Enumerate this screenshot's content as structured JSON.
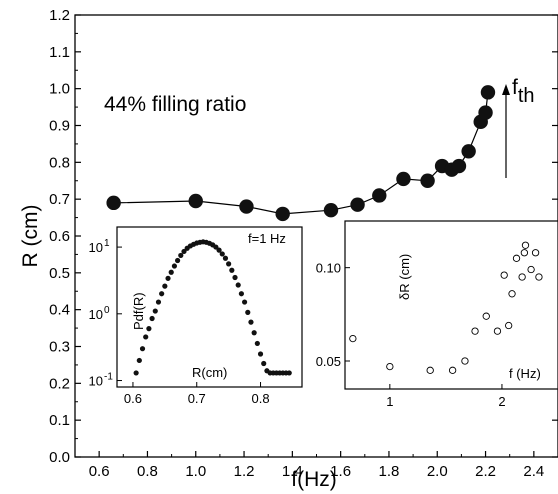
{
  "main": {
    "type": "line",
    "xlabel": "f(Hz)",
    "ylabel": "R (cm)",
    "xlim": [
      0.5,
      2.5
    ],
    "ylim": [
      0.0,
      1.2
    ],
    "xticks": [
      "0.6",
      "0.8",
      "1.0",
      "1.2",
      "1.4",
      "1.6",
      "1.8",
      "2.0",
      "2.2",
      "2.4"
    ],
    "yticks": [
      "0.0",
      "0.1",
      "0.2",
      "0.3",
      "0.4",
      "0.5",
      "0.6",
      "0.7",
      "0.8",
      "0.9",
      "1.0",
      "1.1",
      "1.2"
    ],
    "annotation": "44% filling ratio",
    "threshold_label": "f",
    "threshold_sub": "th"
  },
  "inset_left": {
    "ylabel": "Pdf(R)",
    "xlabel": "R(cm)",
    "note": "f=1 Hz",
    "xticks": [
      "0.6",
      "0.7",
      "0.8"
    ],
    "ytick_bases": [
      "10",
      "10",
      "10"
    ],
    "ytick_exps": [
      "1",
      "0",
      "-1"
    ]
  },
  "inset_right": {
    "ylabel": "δR (cm)",
    "xlabel": "f (Hz)",
    "xticks": [
      "1",
      "2"
    ],
    "yticks": [
      "0.10",
      "0.05"
    ]
  },
  "chart_data": [
    {
      "type": "line",
      "title": "",
      "xlabel": "f(Hz)",
      "ylabel": "R (cm)",
      "xlim": [
        0.5,
        2.5
      ],
      "ylim": [
        0.0,
        1.2
      ],
      "grid": false,
      "x": [
        0.66,
        1.0,
        1.21,
        1.36,
        1.56,
        1.67,
        1.76,
        1.86,
        1.96,
        2.02,
        2.06,
        2.09,
        2.13,
        2.18,
        2.2,
        2.21
      ],
      "y": [
        0.69,
        0.695,
        0.68,
        0.66,
        0.67,
        0.685,
        0.71,
        0.755,
        0.75,
        0.79,
        0.78,
        0.79,
        0.83,
        0.91,
        0.935,
        0.99
      ],
      "annotations": [
        "44% filling ratio",
        "fth"
      ]
    },
    {
      "type": "scatter",
      "title": "",
      "xlabel": "R(cm)",
      "ylabel": "Pdf(R)",
      "yscale": "log",
      "xlim": [
        0.575,
        0.865
      ],
      "ylim": [
        0.08,
        20
      ],
      "annotations": [
        "f=1 Hz"
      ],
      "x": [
        0.605,
        0.61,
        0.615,
        0.62,
        0.625,
        0.63,
        0.635,
        0.64,
        0.645,
        0.65,
        0.655,
        0.66,
        0.665,
        0.67,
        0.675,
        0.68,
        0.685,
        0.69,
        0.695,
        0.7,
        0.705,
        0.71,
        0.715,
        0.72,
        0.725,
        0.73,
        0.735,
        0.74,
        0.745,
        0.75,
        0.755,
        0.76,
        0.765,
        0.77,
        0.775,
        0.78,
        0.785,
        0.79,
        0.795,
        0.8,
        0.805,
        0.81,
        0.815,
        0.82,
        0.825,
        0.83,
        0.835,
        0.84,
        0.845
      ],
      "y": [
        0.13,
        0.2,
        0.3,
        0.45,
        0.6,
        0.85,
        1.1,
        1.5,
        2.0,
        2.6,
        3.4,
        4.2,
        5.2,
        6.3,
        7.5,
        8.6,
        9.6,
        10.4,
        11.0,
        11.5,
        11.8,
        12.0,
        11.8,
        11.4,
        10.8,
        10.0,
        9.0,
        7.9,
        6.8,
        5.6,
        4.5,
        3.5,
        2.7,
        2.0,
        1.5,
        1.05,
        0.75,
        0.52,
        0.36,
        0.25,
        0.18,
        0.14,
        0.13,
        0.13,
        0.13,
        0.13,
        0.13,
        0.13,
        0.13
      ]
    },
    {
      "type": "scatter",
      "title": "",
      "xlabel": "f (Hz)",
      "ylabel": "δR (cm)",
      "xlim": [
        0.6,
        2.5
      ],
      "ylim": [
        0.035,
        0.125
      ],
      "x": [
        0.67,
        1.0,
        1.36,
        1.56,
        1.67,
        1.76,
        1.86,
        1.96,
        2.02,
        2.06,
        2.09,
        2.13,
        2.18,
        2.2,
        2.21,
        2.26,
        2.3,
        2.33
      ],
      "y": [
        0.062,
        0.047,
        0.045,
        0.045,
        0.05,
        0.066,
        0.074,
        0.066,
        0.096,
        0.069,
        0.086,
        0.105,
        0.095,
        0.108,
        0.112,
        0.099,
        0.108,
        0.095
      ]
    }
  ]
}
